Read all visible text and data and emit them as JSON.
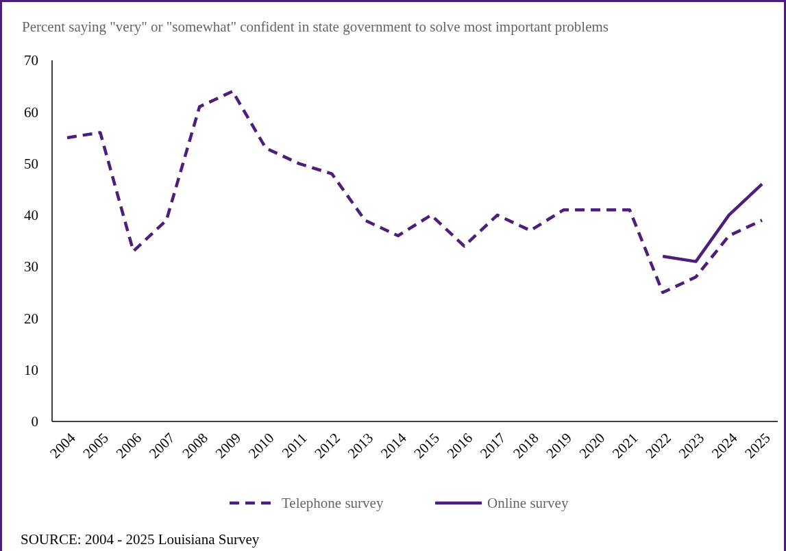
{
  "chart_data": {
    "type": "line",
    "title": "Percent  saying \"very\" or \"somewhat\" confident in state government to solve most important problems",
    "categories": [
      "2004",
      "2005",
      "2006",
      "2007",
      "2008",
      "2009",
      "2010",
      "2011",
      "2012",
      "2013",
      "2014",
      "2015",
      "2016",
      "2017",
      "2018",
      "2019",
      "2020",
      "2021",
      "2022",
      "2023",
      "2024",
      "2025"
    ],
    "series": [
      {
        "name": "Telephone survey",
        "color": "#4b1f7a",
        "line_style": "dashed",
        "values": [
          55,
          56,
          33,
          39,
          61,
          64,
          53,
          50,
          48,
          39,
          36,
          40,
          34,
          40,
          37,
          41,
          41,
          41,
          25,
          28,
          36,
          39
        ]
      },
      {
        "name": "Online survey",
        "color": "#4b1f7a",
        "line_style": "solid",
        "values": [
          null,
          null,
          null,
          null,
          null,
          null,
          null,
          null,
          null,
          null,
          null,
          null,
          null,
          null,
          null,
          null,
          null,
          null,
          32,
          31,
          40,
          46
        ]
      }
    ],
    "ylim": [
      0,
      70
    ],
    "yticks": [
      0,
      10,
      20,
      30,
      40,
      50,
      60,
      70
    ],
    "grid": false,
    "legend": "bottom",
    "marker": "none",
    "annotations": [
      "SOURCE: 2004 - 2025 Louisiana Survey"
    ]
  }
}
